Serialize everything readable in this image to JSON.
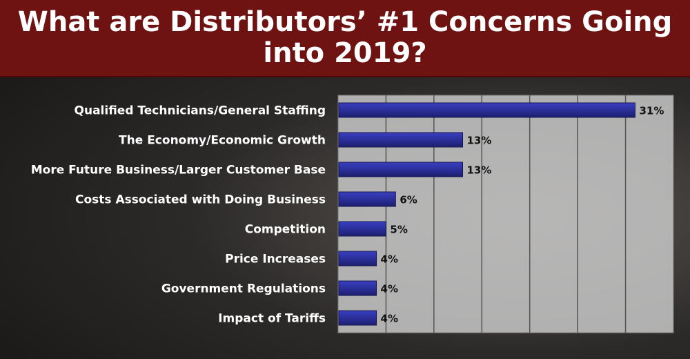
{
  "chart_data": {
    "type": "bar",
    "orientation": "horizontal",
    "title": "What are Distributors’ #1 Concerns Going into 2019?",
    "categories": [
      "Qualified Technicians/General Staffing",
      "The Economy/Economic Growth",
      "More Future Business/Larger Customer Base",
      "Costs Associated with Doing Business",
      "Competition",
      "Price Increases",
      "Government Regulations",
      "Impact of Tariffs"
    ],
    "values": [
      31,
      13,
      13,
      6,
      5,
      4,
      4,
      4
    ],
    "data_labels": [
      "31%",
      "13%",
      "13%",
      "6%",
      "5%",
      "4%",
      "4%",
      "4%"
    ],
    "xlim": [
      0,
      35
    ],
    "grid": true,
    "gridline_step": 5,
    "colors": {
      "bar": "#2b2f9a",
      "title_band": "#6e1212",
      "plot_bg": "#c8c8c8"
    }
  }
}
